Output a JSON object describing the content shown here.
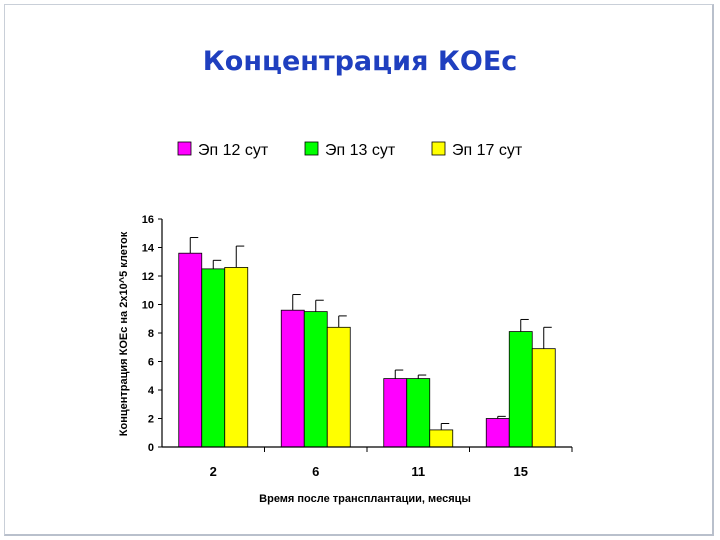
{
  "slide": {
    "title": "Концентрация КОЕс"
  },
  "chart_data": {
    "type": "bar",
    "title": "Концентрация КОЕс",
    "xlabel": "Время после трансплантации, месяцы",
    "ylabel": "Концентрация КОЕс на 2х10^5 клеток",
    "categories": [
      "2",
      "6",
      "11",
      "15"
    ],
    "ylim": [
      0,
      16
    ],
    "yticks": [
      "0",
      "2",
      "4",
      "6",
      "8",
      "10",
      "12",
      "14",
      "16"
    ],
    "legend_position": "top",
    "grid": false,
    "series": [
      {
        "name": "Эп 12 сут",
        "color": "#ff00ff",
        "values": [
          13.6,
          9.6,
          4.8,
          2.0
        ],
        "errors": [
          1.1,
          1.1,
          0.6,
          0.15
        ]
      },
      {
        "name": "Эп 13 сут",
        "color": "#00ff00",
        "values": [
          12.5,
          9.5,
          4.8,
          8.1
        ],
        "errors": [
          0.6,
          0.8,
          0.25,
          0.85
        ]
      },
      {
        "name": "Эп 17 сут",
        "color": "#ffff00",
        "values": [
          12.6,
          8.4,
          1.2,
          6.9
        ],
        "errors": [
          1.5,
          0.8,
          0.45,
          1.5
        ]
      }
    ]
  }
}
